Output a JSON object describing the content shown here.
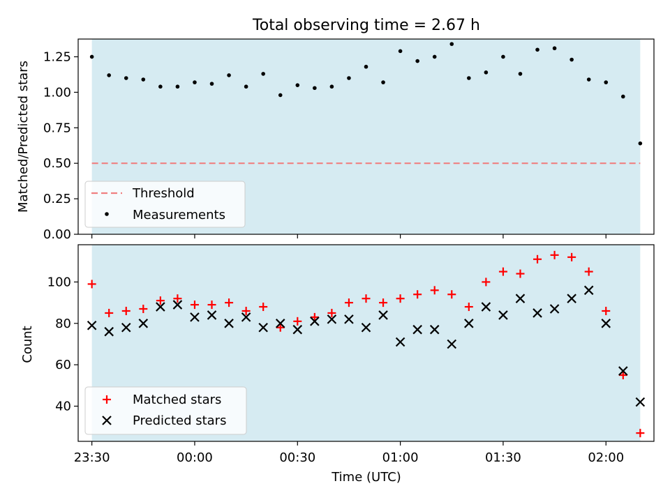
{
  "chart_data": [
    {
      "type": "scatter",
      "title": "Total observing time = 2.67 h",
      "ylabel": "Matched/Predicted stars",
      "xlabel": "",
      "ylim": [
        0,
        1.375
      ],
      "yticks": [
        0.0,
        0.25,
        0.5,
        0.75,
        1.0,
        1.25
      ],
      "ytick_labels": [
        "0.00",
        "0.25",
        "0.50",
        "0.75",
        "1.00",
        "1.25"
      ],
      "shaded_span": {
        "color": "#add8e6",
        "start": "23:30",
        "end": "02:10"
      },
      "threshold": {
        "name": "Threshold",
        "value": 0.5,
        "color": "#f08080",
        "style": "dashed"
      },
      "series": [
        {
          "name": "Measurements",
          "marker": "dot",
          "color": "#000000",
          "x": [
            "23:30",
            "23:35",
            "23:40",
            "23:45",
            "23:50",
            "23:55",
            "00:00",
            "00:05",
            "00:10",
            "00:15",
            "00:20",
            "00:25",
            "00:30",
            "00:35",
            "00:40",
            "00:45",
            "00:50",
            "00:55",
            "01:00",
            "01:05",
            "01:10",
            "01:15",
            "01:20",
            "01:25",
            "01:30",
            "01:35",
            "01:40",
            "01:45",
            "01:50",
            "01:55",
            "02:00",
            "02:05",
            "02:10"
          ],
          "values": [
            1.25,
            1.12,
            1.1,
            1.09,
            1.04,
            1.04,
            1.07,
            1.06,
            1.12,
            1.04,
            1.13,
            0.98,
            1.05,
            1.03,
            1.04,
            1.1,
            1.18,
            1.07,
            1.29,
            1.22,
            1.25,
            1.34,
            1.1,
            1.14,
            1.25,
            1.13,
            1.3,
            1.31,
            1.23,
            1.09,
            1.07,
            0.97,
            0.64
          ]
        }
      ],
      "legend": {
        "placement": "lower-left",
        "entries": [
          "Threshold",
          "Measurements"
        ]
      }
    },
    {
      "type": "scatter",
      "title": "",
      "xlabel": "Time (UTC)",
      "ylabel": "Count",
      "ylim": [
        23,
        118
      ],
      "yticks": [
        40,
        60,
        80,
        100
      ],
      "ytick_labels": [
        "40",
        "60",
        "80",
        "100"
      ],
      "xlim": [
        "23:26",
        "02:14"
      ],
      "xticks": [
        "23:30",
        "00:00",
        "00:30",
        "01:00",
        "01:30",
        "02:00"
      ],
      "shaded_span": {
        "color": "#add8e6",
        "start": "23:30",
        "end": "02:10"
      },
      "series": [
        {
          "name": "Matched stars",
          "marker": "plus",
          "color": "#ff0000",
          "x": [
            "23:30",
            "23:35",
            "23:40",
            "23:45",
            "23:50",
            "23:55",
            "00:00",
            "00:05",
            "00:10",
            "00:15",
            "00:20",
            "00:25",
            "00:30",
            "00:35",
            "00:40",
            "00:45",
            "00:50",
            "00:55",
            "01:00",
            "01:05",
            "01:10",
            "01:15",
            "01:20",
            "01:25",
            "01:30",
            "01:35",
            "01:40",
            "01:45",
            "01:50",
            "01:55",
            "02:00",
            "02:05",
            "02:10"
          ],
          "values": [
            99,
            85,
            86,
            87,
            91,
            92,
            89,
            89,
            90,
            86,
            88,
            78,
            81,
            83,
            85,
            90,
            92,
            90,
            92,
            94,
            96,
            94,
            88,
            100,
            105,
            104,
            111,
            113,
            112,
            105,
            86,
            55,
            27
          ]
        },
        {
          "name": "Predicted stars",
          "marker": "x",
          "color": "#000000",
          "x": [
            "23:30",
            "23:35",
            "23:40",
            "23:45",
            "23:50",
            "23:55",
            "00:00",
            "00:05",
            "00:10",
            "00:15",
            "00:20",
            "00:25",
            "00:30",
            "00:35",
            "00:40",
            "00:45",
            "00:50",
            "00:55",
            "01:00",
            "01:05",
            "01:10",
            "01:15",
            "01:20",
            "01:25",
            "01:30",
            "01:35",
            "01:40",
            "01:45",
            "01:50",
            "01:55",
            "02:00",
            "02:05",
            "02:10"
          ],
          "values": [
            79,
            76,
            78,
            80,
            88,
            89,
            83,
            84,
            80,
            83,
            78,
            80,
            77,
            81,
            82,
            82,
            78,
            84,
            71,
            77,
            77,
            70,
            80,
            88,
            84,
            92,
            85,
            87,
            92,
            96,
            80,
            57,
            42
          ]
        }
      ],
      "legend": {
        "placement": "lower-left",
        "entries": [
          "Matched stars",
          "Predicted stars"
        ]
      }
    }
  ]
}
